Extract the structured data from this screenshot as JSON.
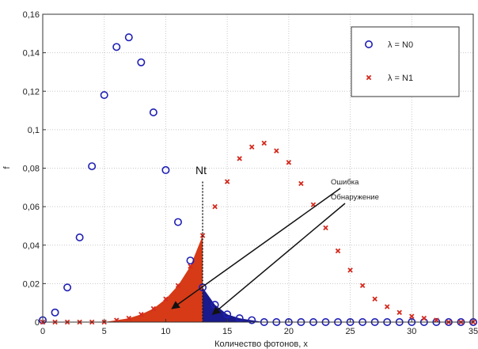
{
  "chart_data": {
    "type": "scatter",
    "xlabel": "Количество фотонов, x",
    "ylabel": "f",
    "xlim": [
      0,
      35
    ],
    "ylim": [
      0,
      0.16
    ],
    "xticks": [
      {
        "value": 0,
        "label": "0"
      },
      {
        "value": 5,
        "label": "5"
      },
      {
        "value": 10,
        "label": "10"
      },
      {
        "value": 15,
        "label": "15"
      },
      {
        "value": 20,
        "label": "20"
      },
      {
        "value": 25,
        "label": "25"
      },
      {
        "value": 30,
        "label": "30"
      },
      {
        "value": 35,
        "label": "35"
      }
    ],
    "yticks": [
      {
        "value": 0,
        "label": "0"
      },
      {
        "value": 0.02,
        "label": "0,02"
      },
      {
        "value": 0.04,
        "label": "0,04"
      },
      {
        "value": 0.06,
        "label": "0,06"
      },
      {
        "value": 0.08,
        "label": "0,08"
      },
      {
        "value": 0.1,
        "label": "0,1"
      },
      {
        "value": 0.12,
        "label": "0,12"
      },
      {
        "value": 0.14,
        "label": "0,14"
      },
      {
        "value": 0.16,
        "label": "0,16"
      }
    ],
    "grid": true,
    "legend_position": "top-right",
    "series": [
      {
        "name": "λ = N0",
        "marker": "circle",
        "color": "#1f1fb4",
        "x": [
          0,
          1,
          2,
          3,
          4,
          5,
          6,
          7,
          8,
          9,
          10,
          11,
          12,
          13,
          14,
          15,
          16,
          17,
          18,
          19,
          20,
          21,
          22,
          23,
          24,
          25,
          26,
          27,
          28,
          29,
          30,
          31,
          32,
          33,
          34,
          35
        ],
        "y": [
          0.001,
          0.005,
          0.018,
          0.044,
          0.081,
          0.118,
          0.143,
          0.148,
          0.135,
          0.109,
          0.079,
          0.052,
          0.032,
          0.018,
          0.009,
          0.004,
          0.002,
          0.001,
          0,
          0,
          0,
          0,
          0,
          0,
          0,
          0,
          0,
          0,
          0,
          0,
          0,
          0,
          0,
          0,
          0,
          0
        ]
      },
      {
        "name": "λ = N1",
        "marker": "x",
        "color": "#d42a1e",
        "x": [
          0,
          1,
          2,
          3,
          4,
          5,
          6,
          7,
          8,
          9,
          10,
          11,
          12,
          13,
          14,
          15,
          16,
          17,
          18,
          19,
          20,
          21,
          22,
          23,
          24,
          25,
          26,
          27,
          28,
          29,
          30,
          31,
          32,
          33,
          34,
          35
        ],
        "y": [
          0,
          0,
          0,
          0,
          0,
          0,
          0.001,
          0.002,
          0.004,
          0.007,
          0.012,
          0.019,
          0.029,
          0.045,
          0.06,
          0.073,
          0.085,
          0.091,
          0.093,
          0.089,
          0.083,
          0.072,
          0.061,
          0.049,
          0.037,
          0.027,
          0.019,
          0.012,
          0.008,
          0.005,
          0.003,
          0.002,
          0.001,
          0,
          0,
          0
        ]
      }
    ],
    "threshold": {
      "label": "Nt",
      "x": 13
    },
    "regions": [
      {
        "name": "error",
        "color": "#d63a16",
        "from": 0,
        "to": 13,
        "series": 1
      },
      {
        "name": "detection",
        "color": "#1a1a8c",
        "from": 13,
        "to": 18,
        "series": 0
      }
    ],
    "annotations": [
      {
        "text": "Ошибка",
        "target_x": 10.5,
        "target_y": 0.007
      },
      {
        "text": "Обнаружение",
        "target_x": 13.8,
        "target_y": 0.004
      }
    ]
  }
}
